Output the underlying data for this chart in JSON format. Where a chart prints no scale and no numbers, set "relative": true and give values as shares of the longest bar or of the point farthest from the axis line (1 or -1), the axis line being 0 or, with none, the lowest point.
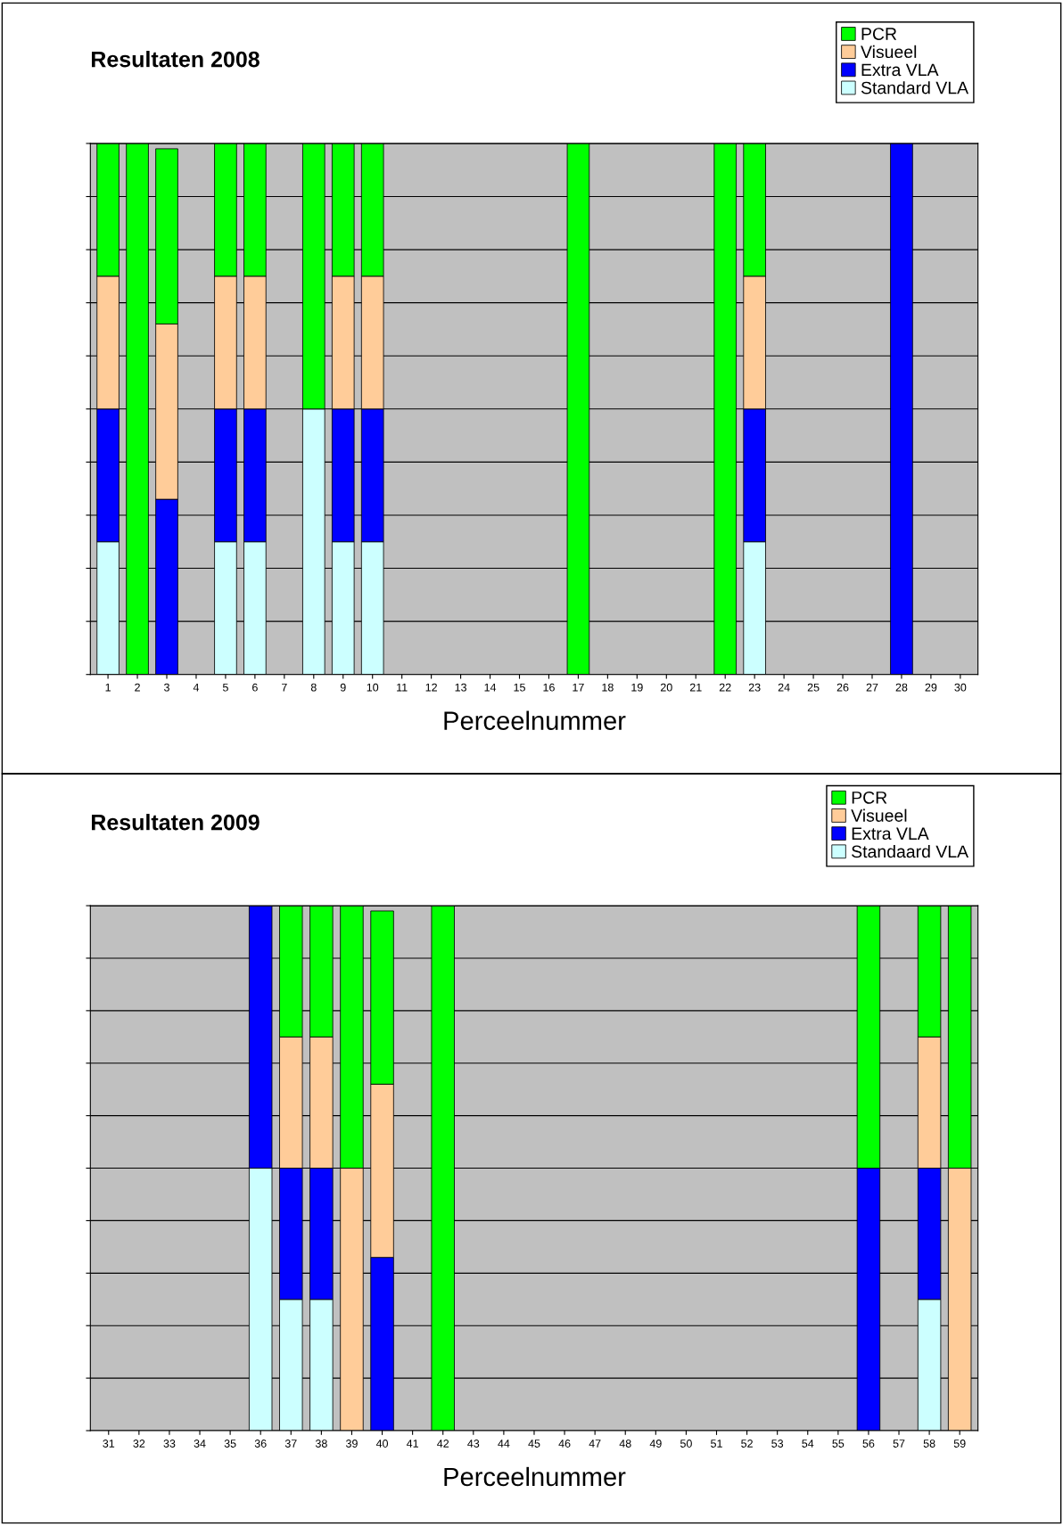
{
  "chart_data": [
    {
      "type": "bar",
      "title": "Resultaten 2008",
      "xlabel": "Perceelnummer",
      "relative": true,
      "stacked": true,
      "grid": "y",
      "legend": "top right",
      "categories": [
        "1",
        "2",
        "3",
        "4",
        "5",
        "6",
        "7",
        "8",
        "9",
        "10",
        "11",
        "12",
        "13",
        "14",
        "15",
        "16",
        "17",
        "18",
        "19",
        "20",
        "21",
        "22",
        "23",
        "24",
        "25",
        "26",
        "27",
        "28",
        "29",
        "30"
      ],
      "series": [
        {
          "name": "Standard VLA",
          "color": "#ccffff",
          "values": [
            0.25,
            0,
            0,
            0,
            0.25,
            0.25,
            0,
            0.5,
            0.25,
            0.25,
            0,
            0,
            0,
            0,
            0,
            0,
            0,
            0,
            0,
            0,
            0,
            0,
            0.25,
            0,
            0,
            0,
            0,
            0,
            0,
            0
          ]
        },
        {
          "name": "Extra VLA",
          "color": "#0000ff",
          "values": [
            0.25,
            0,
            0.33,
            0,
            0.25,
            0.25,
            0,
            0,
            0.25,
            0.25,
            0,
            0,
            0,
            0,
            0,
            0,
            0,
            0,
            0,
            0,
            0,
            0,
            0.25,
            0,
            0,
            0,
            0,
            1,
            0,
            0
          ]
        },
        {
          "name": "Visueel",
          "color": "#ffcc99",
          "values": [
            0.25,
            0,
            0.33,
            0,
            0.25,
            0.25,
            0,
            0,
            0.25,
            0.25,
            0,
            0,
            0,
            0,
            0,
            0,
            0,
            0,
            0,
            0,
            0,
            0,
            0.25,
            0,
            0,
            0,
            0,
            0,
            0,
            0
          ]
        },
        {
          "name": "PCR",
          "color": "#00ff00",
          "values": [
            0.25,
            1,
            0.33,
            0,
            0.25,
            0.25,
            0,
            0.5,
            0.25,
            0.25,
            0,
            0,
            0,
            0,
            0,
            0,
            1,
            0,
            0,
            0,
            0,
            1,
            0.25,
            0,
            0,
            0,
            0,
            0,
            0,
            0
          ]
        }
      ]
    },
    {
      "type": "bar",
      "title": "Resultaten 2009",
      "xlabel": "Perceelnummer",
      "relative": true,
      "stacked": true,
      "grid": "y",
      "legend": "top right",
      "categories": [
        "31",
        "32",
        "33",
        "34",
        "35",
        "36",
        "37",
        "38",
        "39",
        "40",
        "41",
        "42",
        "43",
        "44",
        "45",
        "46",
        "47",
        "48",
        "49",
        "50",
        "51",
        "52",
        "53",
        "54",
        "55",
        "56",
        "57",
        "58",
        "59"
      ],
      "series": [
        {
          "name": "Standaard VLA",
          "color": "#ccffff",
          "values": [
            0,
            0,
            0,
            0,
            0,
            0.5,
            0.25,
            0.25,
            0,
            0,
            0,
            0,
            0,
            0,
            0,
            0,
            0,
            0,
            0,
            0,
            0,
            0,
            0,
            0,
            0,
            0,
            0,
            0.25,
            0
          ]
        },
        {
          "name": "Extra VLA",
          "color": "#0000ff",
          "values": [
            0,
            0,
            0,
            0,
            0,
            0.5,
            0.25,
            0.25,
            0,
            0.33,
            0,
            0,
            0,
            0,
            0,
            0,
            0,
            0,
            0,
            0,
            0,
            0,
            0,
            0,
            0,
            0.5,
            0,
            0.25,
            0
          ]
        },
        {
          "name": "Visueel",
          "color": "#ffcc99",
          "values": [
            0,
            0,
            0,
            0,
            0,
            0,
            0.25,
            0.25,
            0.5,
            0.33,
            0,
            0,
            0,
            0,
            0,
            0,
            0,
            0,
            0,
            0,
            0,
            0,
            0,
            0,
            0,
            0,
            0,
            0.25,
            0.5
          ]
        },
        {
          "name": "PCR",
          "color": "#00ff00",
          "values": [
            0,
            0,
            0,
            0,
            0,
            0,
            0.25,
            0.25,
            0.5,
            0.33,
            0,
            1,
            0,
            0,
            0,
            0,
            0,
            0,
            0,
            0,
            0,
            0,
            0,
            0,
            0,
            0.5,
            0,
            0.25,
            0.5
          ]
        }
      ]
    }
  ]
}
